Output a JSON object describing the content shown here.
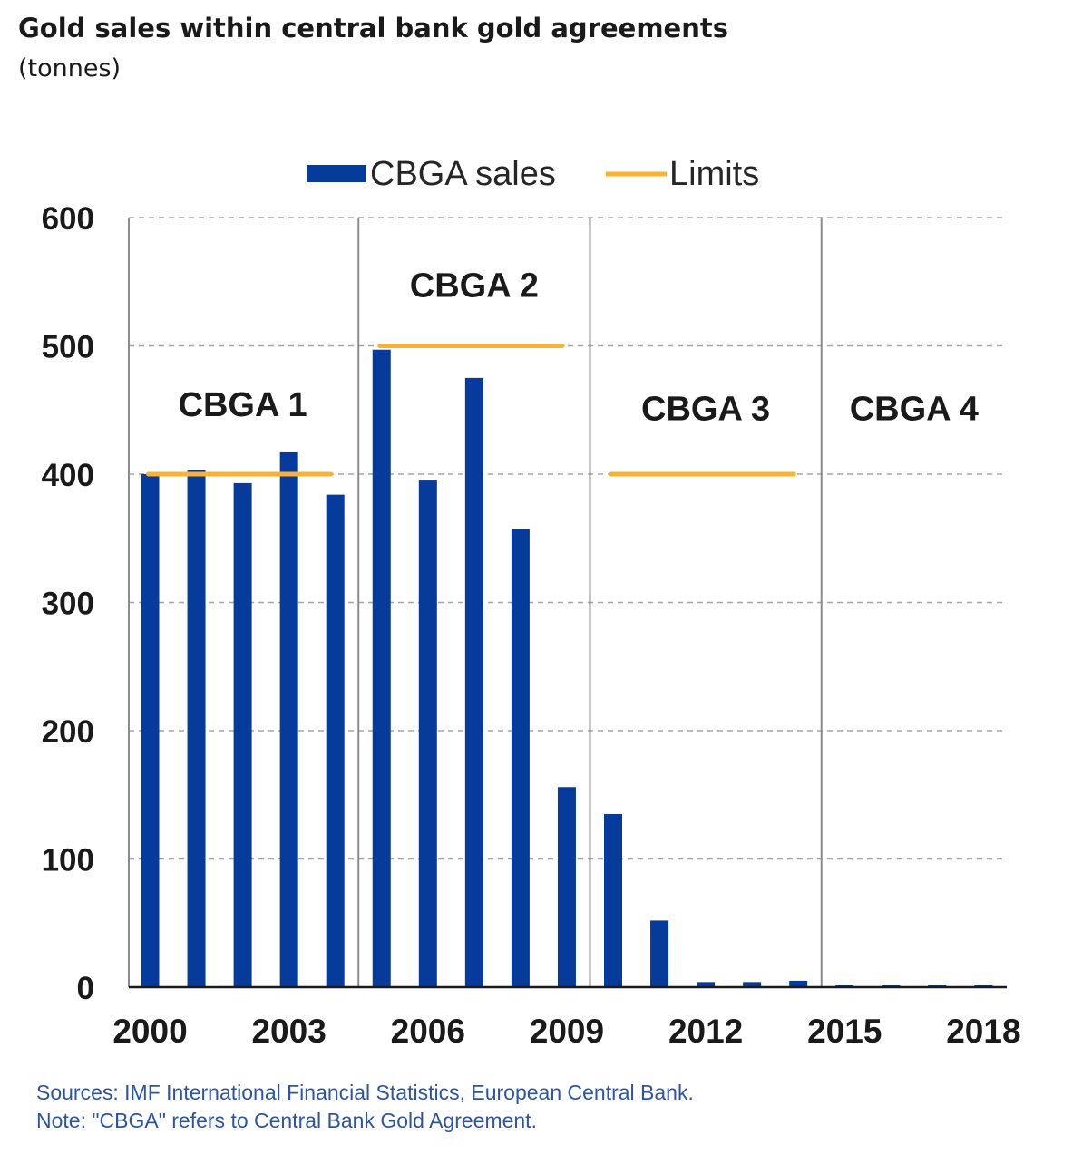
{
  "title": "Gold sales within central bank gold agreements",
  "subtitle": "(tonnes)",
  "footer": {
    "sources": "Sources: IMF International Financial Statistics, European Central Bank.",
    "note": "Note: \"CBGA\" refers to Central Bank Gold Agreement."
  },
  "colors": {
    "sales": "#063a9b",
    "limits": "#f9b233",
    "grid": "#a6a6a6",
    "divider": "#8c8c8c",
    "axis": "#1a1a1a",
    "footer": "#2d55a6"
  },
  "chart_data": {
    "type": "bar",
    "title": "Gold sales within central bank gold agreements",
    "ylabel": "",
    "xlabel": "",
    "ylim": [
      0,
      600
    ],
    "yticks": [
      0,
      100,
      200,
      300,
      400,
      500,
      600
    ],
    "grid": true,
    "legend_position": "top-center",
    "x_tick_labels": [
      "2000",
      "2003",
      "2006",
      "2009",
      "2012",
      "2015",
      "2018"
    ],
    "categories": [
      "2000",
      "2001",
      "2002",
      "2003",
      "2004",
      "2005",
      "2006",
      "2007",
      "2008",
      "2009",
      "2010",
      "2011",
      "2012",
      "2013",
      "2014",
      "2015",
      "2016",
      "2017",
      "2018"
    ],
    "series": [
      {
        "name": "CBGA sales",
        "type": "bar",
        "values": [
          400,
          403,
          393,
          417,
          384,
          497,
          395,
          475,
          357,
          156,
          135,
          52,
          4,
          4,
          5,
          2,
          2,
          2,
          2
        ]
      },
      {
        "name": "Limits",
        "type": "line",
        "segments": [
          {
            "from": "2000",
            "to": "2004",
            "value": 400
          },
          {
            "from": "2005",
            "to": "2009",
            "value": 500
          },
          {
            "from": "2010",
            "to": "2014",
            "value": 400
          }
        ]
      }
    ],
    "annotations": [
      {
        "text": "CBGA 1",
        "x": "2002",
        "y": 455
      },
      {
        "text": "CBGA 2",
        "x": "2007",
        "y": 548
      },
      {
        "text": "CBGA 3",
        "x": "2012",
        "y": 452
      },
      {
        "text": "CBGA 4",
        "x": "2016.5",
        "y": 452
      }
    ],
    "period_dividers": [
      "2004.5",
      "2009.5",
      "2014.5"
    ]
  }
}
